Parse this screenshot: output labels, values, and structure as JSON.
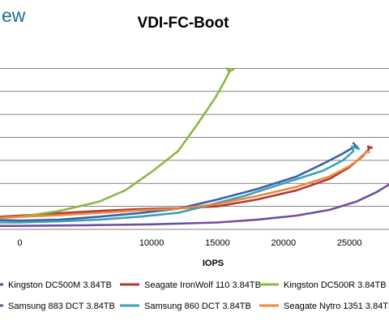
{
  "brand": {
    "logo_text": "ew"
  },
  "chart_data": {
    "type": "line",
    "title": "VDI-FC-Boot",
    "xlabel": "IOPS",
    "ylabel": "",
    "xlim": [
      -1500,
      28000
    ],
    "ylim": [
      0,
      8
    ],
    "x_ticks": [
      {
        "value": 0,
        "label": "0"
      },
      {
        "value": 10000,
        "label": "10000"
      },
      {
        "value": 15000,
        "label": "15000"
      },
      {
        "value": 20000,
        "label": "20000"
      },
      {
        "value": 25000,
        "label": "25000"
      }
    ],
    "y_gridlines": [
      1,
      2,
      3,
      4,
      5,
      6,
      7
    ],
    "grid": true,
    "legend_position": "bottom",
    "series": [
      {
        "name": "Kingston DC500M 3.84TB",
        "color": "#3a5fa8",
        "x": [
          -1500,
          0,
          3000,
          6000,
          9000,
          12000,
          15000,
          18000,
          21000,
          23000,
          24500,
          25400,
          25600,
          25300,
          25700
        ],
        "y": [
          0.4,
          0.38,
          0.42,
          0.55,
          0.7,
          0.9,
          1.3,
          1.75,
          2.3,
          2.85,
          3.3,
          3.6,
          3.55,
          3.75,
          3.5
        ]
      },
      {
        "name": "Seagate IronWolf 110 3.84TB",
        "color": "#b03a32",
        "x": [
          -1500,
          0,
          3000,
          6000,
          9000,
          12000,
          15000,
          18000,
          21000,
          23500,
          25000,
          26000,
          26500,
          26400,
          26700
        ],
        "y": [
          0.55,
          0.6,
          0.7,
          0.8,
          0.88,
          0.92,
          1.0,
          1.3,
          1.7,
          2.2,
          2.7,
          3.2,
          3.5,
          3.6,
          3.55
        ]
      },
      {
        "name": "Kingston DC500R 3.84TB",
        "color": "#8db646",
        "x": [
          -1500,
          0,
          3000,
          6000,
          8000,
          10000,
          12000,
          13500,
          14800,
          15500,
          15900,
          15700,
          16000,
          16200
        ],
        "y": [
          0.5,
          0.55,
          0.8,
          1.2,
          1.7,
          2.5,
          3.4,
          4.6,
          5.7,
          6.4,
          6.85,
          7.0,
          6.9,
          6.95
        ]
      },
      {
        "name": "Samsung 883 DCT 3.84TB",
        "color": "#6f4f9c",
        "x": [
          -1500,
          0,
          5000,
          10000,
          15000,
          18000,
          21000,
          23500,
          25500,
          27000,
          28000
        ],
        "y": [
          0.15,
          0.15,
          0.18,
          0.22,
          0.3,
          0.42,
          0.6,
          0.85,
          1.2,
          1.6,
          1.95
        ]
      },
      {
        "name": "Samsung 860 DCT 3.84TB",
        "color": "#3ea0b5",
        "x": [
          -1500,
          0,
          3000,
          6000,
          9000,
          12000,
          14000,
          17000,
          20000,
          23000,
          24500,
          25300,
          25200,
          25700
        ],
        "y": [
          0.3,
          0.3,
          0.35,
          0.42,
          0.55,
          0.72,
          1.0,
          1.45,
          2.0,
          2.55,
          3.0,
          3.4,
          3.6,
          3.5
        ]
      },
      {
        "name": "Seagate Nytro 1351 3.84TB",
        "color": "#e88a3c",
        "x": [
          -1500,
          0,
          3000,
          6000,
          9000,
          12000,
          15000,
          18000,
          21000,
          23500,
          25000,
          26000,
          26300,
          26500
        ],
        "y": [
          0.5,
          0.55,
          0.62,
          0.72,
          0.82,
          0.9,
          1.1,
          1.45,
          1.85,
          2.3,
          2.75,
          3.15,
          3.4,
          3.35
        ]
      }
    ]
  }
}
